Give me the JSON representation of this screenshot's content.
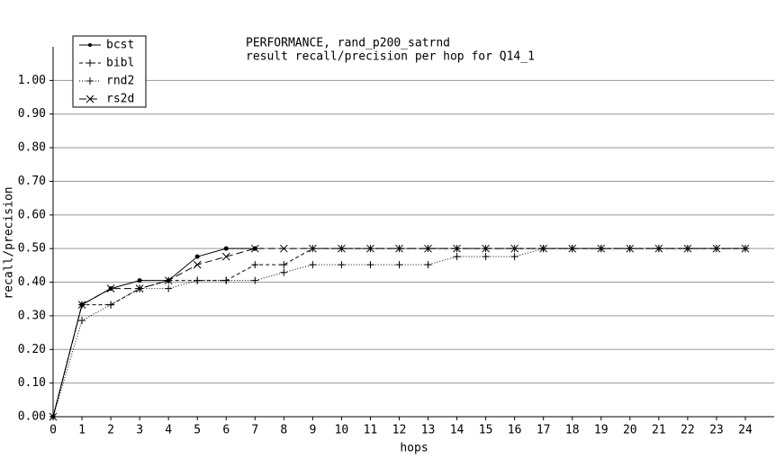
{
  "chart_data": {
    "type": "line",
    "title": "PERFORMANCE, rand_p200_satrnd",
    "subtitle": "result recall/precision per hop for Q14_1",
    "x_label": "hops",
    "y_label": "recall/precision",
    "x": [
      0,
      1,
      2,
      3,
      4,
      5,
      6,
      7,
      8,
      9,
      10,
      11,
      12,
      13,
      14,
      15,
      16,
      17,
      18,
      19,
      20,
      21,
      22,
      23,
      24
    ],
    "series": [
      {
        "name": "bcst",
        "color": "#000000",
        "style": "solid",
        "marker": "dot",
        "values": [
          0,
          0.333,
          0.381,
          0.405,
          0.405,
          0.476,
          0.5,
          0.5,
          null,
          null,
          null,
          null,
          null,
          null,
          null,
          null,
          null,
          null,
          null,
          null,
          null,
          null,
          null,
          null,
          null
        ]
      },
      {
        "name": "bibl",
        "color": "#000000",
        "style": "dashed",
        "marker": "plus",
        "values": [
          0,
          0.333,
          0.333,
          0.381,
          0.405,
          0.405,
          0.405,
          0.452,
          0.452,
          0.5,
          0.5,
          0.5,
          0.5,
          0.5,
          0.5,
          0.5,
          0.5,
          0.5,
          0.5,
          0.5,
          0.5,
          0.5,
          0.5,
          0.5,
          0.5
        ]
      },
      {
        "name": "rnd2",
        "color": "#000000",
        "style": "dotted",
        "marker": "plus",
        "values": [
          0,
          0.286,
          0.333,
          0.381,
          0.381,
          0.405,
          0.405,
          0.405,
          0.429,
          0.452,
          0.452,
          0.452,
          0.452,
          0.452,
          0.476,
          0.476,
          0.476,
          0.5,
          0.5,
          0.5,
          0.5,
          0.5,
          0.5,
          0.5,
          0.5
        ]
      },
      {
        "name": "rs2d",
        "color": "#000000",
        "style": "longdash",
        "marker": "cross",
        "values": [
          0,
          0.333,
          0.381,
          0.381,
          0.405,
          0.452,
          0.476,
          0.5,
          0.5,
          0.5,
          0.5,
          0.5,
          0.5,
          0.5,
          0.5,
          0.5,
          0.5,
          0.5,
          0.5,
          0.5,
          0.5,
          0.5,
          0.5,
          0.5,
          0.5
        ]
      }
    ],
    "xlim": [
      0,
      25
    ],
    "xticks": [
      0,
      1,
      2,
      3,
      4,
      5,
      6,
      7,
      8,
      9,
      10,
      11,
      12,
      13,
      14,
      15,
      16,
      17,
      18,
      19,
      20,
      21,
      22,
      23,
      24
    ],
    "ylim": [
      0,
      1.1
    ],
    "yticks": [
      {
        "value": 0,
        "label": "0.00"
      },
      {
        "value": 0.1,
        "label": "0.10"
      },
      {
        "value": 0.2,
        "label": "0.20"
      },
      {
        "value": 0.3,
        "label": "0.30"
      },
      {
        "value": 0.4,
        "label": "0.40"
      },
      {
        "value": 0.5,
        "label": "0.50"
      },
      {
        "value": 0.6,
        "label": "0.60"
      },
      {
        "value": 0.7,
        "label": "0.70"
      },
      {
        "value": 0.8,
        "label": "0.80"
      },
      {
        "value": 0.9,
        "label": "0.90"
      },
      {
        "value": 1.0,
        "label": "1.00"
      }
    ],
    "grid": true,
    "legend": "top-left"
  }
}
